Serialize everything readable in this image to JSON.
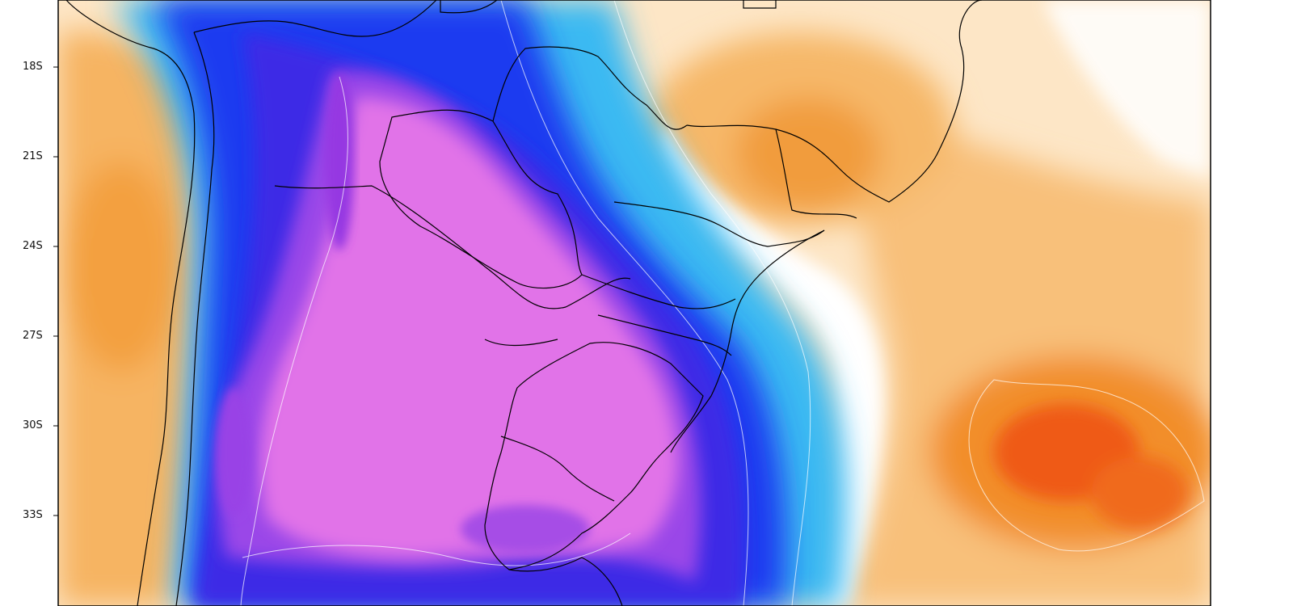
{
  "map": {
    "lat_ticks": [
      "18S",
      "21S",
      "24S",
      "27S",
      "30S",
      "33S"
    ],
    "colors": {
      "warm_light": "#fde0b8",
      "warm_mid": "#f7b35e",
      "warm_strong": "#f08a1c",
      "warm_hot": "#ef4e12",
      "cold_cyan": "#36b8f3",
      "cold_blue": "#1a37ee",
      "cold_deep": "#1e0fd4",
      "violet": "#8d3ae6",
      "magenta": "#df6be6",
      "border_line": "#000000"
    }
  }
}
